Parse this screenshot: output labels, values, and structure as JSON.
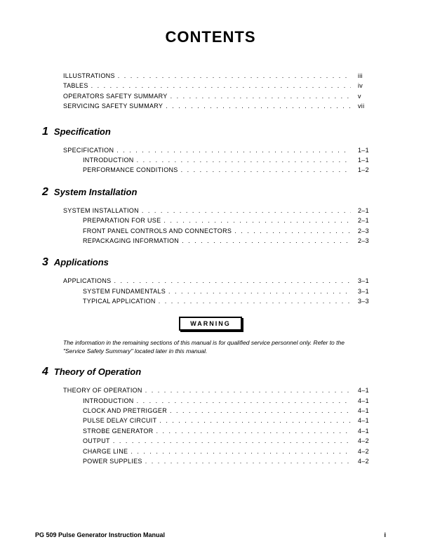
{
  "title": "CONTENTS",
  "preEntries": [
    {
      "label": "ILLUSTRATIONS",
      "page": "iii",
      "sub": false
    },
    {
      "label": "TABLES",
      "page": "iv",
      "sub": false
    },
    {
      "label": "OPERATORS SAFETY SUMMARY",
      "page": "v",
      "sub": false
    },
    {
      "label": "SERVICING SAFETY SUMMARY",
      "page": "vii",
      "sub": false
    }
  ],
  "sections": [
    {
      "num": "1",
      "title": "Specification",
      "entries": [
        {
          "label": "SPECIFICATION",
          "page": "1–1",
          "sub": false
        },
        {
          "label": "INTRODUCTION",
          "page": "1–1",
          "sub": true
        },
        {
          "label": "PERFORMANCE CONDITIONS",
          "page": "1–2",
          "sub": true
        }
      ]
    },
    {
      "num": "2",
      "title": "System Installation",
      "entries": [
        {
          "label": "SYSTEM INSTALLATION",
          "page": "2–1",
          "sub": false
        },
        {
          "label": "PREPARATION FOR USE",
          "page": "2–1",
          "sub": true
        },
        {
          "label": "FRONT PANEL CONTROLS AND CONNECTORS",
          "page": "2–3",
          "sub": true
        },
        {
          "label": "REPACKAGING INFORMATION",
          "page": "2–3",
          "sub": true
        }
      ]
    },
    {
      "num": "3",
      "title": "Applications",
      "entries": [
        {
          "label": "APPLICATIONS",
          "page": "3–1",
          "sub": false
        },
        {
          "label": "SYSTEM FUNDAMENTALS",
          "page": "3–1",
          "sub": true
        },
        {
          "label": "TYPICAL APPLICATION",
          "page": "3–3",
          "sub": true
        }
      ],
      "warningAfter": true,
      "noteAfter": "The information in the remaining sections of this manual is for qualified service personnel only. Refer to the \"Service Safety Summary\" located later in this manual."
    },
    {
      "num": "4",
      "title": "Theory of Operation",
      "entries": [
        {
          "label": "THEORY OF OPERATION",
          "page": "4–1",
          "sub": false
        },
        {
          "label": "INTRODUCTION",
          "page": "4–1",
          "sub": true
        },
        {
          "label": "CLOCK AND PRETRIGGER",
          "page": "4–1",
          "sub": true
        },
        {
          "label": "PULSE DELAY CIRCUIT",
          "page": "4–1",
          "sub": true
        },
        {
          "label": "STROBE GENERATOR",
          "page": "4–1",
          "sub": true
        },
        {
          "label": "OUTPUT",
          "page": "4–2",
          "sub": true
        },
        {
          "label": "CHARGE LINE",
          "page": "4–2",
          "sub": true
        },
        {
          "label": "POWER  SUPPLIES",
          "page": "4–2",
          "sub": true
        }
      ]
    }
  ],
  "warningLabel": "WARNING",
  "footerLeft": "PG 509 Pulse Generator Instruction Manual",
  "footerRight": "i",
  "dotsFill": ". . . . . . . . . . . . . . . . . . . . . . . . . . . . . . . . . . . . . . . . . . . . . . . . . . . . . . . . . . . . . . . . . . . . . . . . . . . . . . . ."
}
